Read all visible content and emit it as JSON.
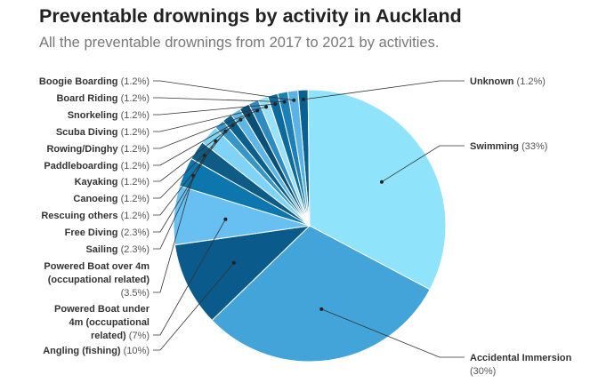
{
  "title": "Preventable drownings by activity in Auckland",
  "subtitle": "All the preventable drownings from 2017 to 2021 by activities.",
  "chart_data": {
    "type": "pie",
    "unit": "%",
    "slices": [
      {
        "name": "Unknown",
        "value": 1.2,
        "label_lines": [
          [
            "Unknown",
            " (1.2%)"
          ]
        ],
        "color": "#0a5f93",
        "side": "right"
      },
      {
        "name": "Swimming",
        "value": 33,
        "label_lines": [
          [
            "Swimming",
            " (33%)"
          ]
        ],
        "color": "#8fe3fb",
        "side": "right"
      },
      {
        "name": "Accidental Immersion",
        "value": 30,
        "label_lines": [
          [
            "Accidental Immersion",
            ""
          ],
          [
            "",
            "(30%)"
          ]
        ],
        "color": "#42a4d9",
        "side": "right"
      },
      {
        "name": "Angling (fishing)",
        "value": 10,
        "label_lines": [
          [
            "Angling (fishing)",
            " (10%)"
          ]
        ],
        "color": "#0b5a8c",
        "side": "left"
      },
      {
        "name": "Powered Boat under 4m (occupational related)",
        "value": 7,
        "label_lines": [
          [
            "Powered Boat under",
            ""
          ],
          [
            "4m (occupational",
            ""
          ],
          [
            "related)",
            " (7%)"
          ]
        ],
        "color": "#68bff2",
        "side": "left"
      },
      {
        "name": "Powered Boat over 4m (occupational related)",
        "value": 3.5,
        "label_lines": [
          [
            "Powered Boat over 4m",
            ""
          ],
          [
            "(occupational related)",
            ""
          ],
          [
            "",
            "(3.5%)"
          ]
        ],
        "color": "#0d76ac",
        "side": "left"
      },
      {
        "name": "Sailing",
        "value": 2.3,
        "label_lines": [
          [
            "Sailing",
            " (2.3%)"
          ]
        ],
        "color": "#0e5c86",
        "side": "left"
      },
      {
        "name": "Free Diving",
        "value": 2.3,
        "label_lines": [
          [
            "Free Diving",
            " (2.3%)"
          ]
        ],
        "color": "#7fd3f6",
        "side": "left"
      },
      {
        "name": "Rescuing others",
        "value": 1.2,
        "label_lines": [
          [
            "Rescuing others",
            " (1.2%)"
          ]
        ],
        "color": "#3796c8",
        "side": "left"
      },
      {
        "name": "Canoeing",
        "value": 1.2,
        "label_lines": [
          [
            "Canoeing",
            " (1.2%)"
          ]
        ],
        "color": "#0b5f8d",
        "side": "left"
      },
      {
        "name": "Kayaking",
        "value": 1.2,
        "label_lines": [
          [
            "Kayaking",
            " (1.2%)"
          ]
        ],
        "color": "#5db6e8",
        "side": "left"
      },
      {
        "name": "Paddleboarding",
        "value": 1.2,
        "label_lines": [
          [
            "Paddleboarding",
            " (1.2%)"
          ]
        ],
        "color": "#0a4f78",
        "side": "left"
      },
      {
        "name": "Rowing/Dinghy",
        "value": 1.2,
        "label_lines": [
          [
            "Rowing/Dinghy",
            " (1.2%)"
          ]
        ],
        "color": "#2d8bc1",
        "side": "left"
      },
      {
        "name": "Scuba Diving",
        "value": 1.2,
        "label_lines": [
          [
            "Scuba Diving",
            " (1.2%)"
          ]
        ],
        "color": "#9ae2fa",
        "side": "left"
      },
      {
        "name": "Snorkeling",
        "value": 1.2,
        "label_lines": [
          [
            "Snorkeling",
            " (1.2%)"
          ]
        ],
        "color": "#0c6a9c",
        "side": "left"
      },
      {
        "name": "Board Riding",
        "value": 1.2,
        "label_lines": [
          [
            "Board Riding",
            " (1.2%)"
          ]
        ],
        "color": "#1d7fb8",
        "side": "left"
      },
      {
        "name": "Boogie Boarding",
        "value": 1.2,
        "label_lines": [
          [
            "Boogie Boarding",
            " (1.2%)"
          ]
        ],
        "color": "#5ab3e6",
        "side": "left"
      }
    ]
  }
}
